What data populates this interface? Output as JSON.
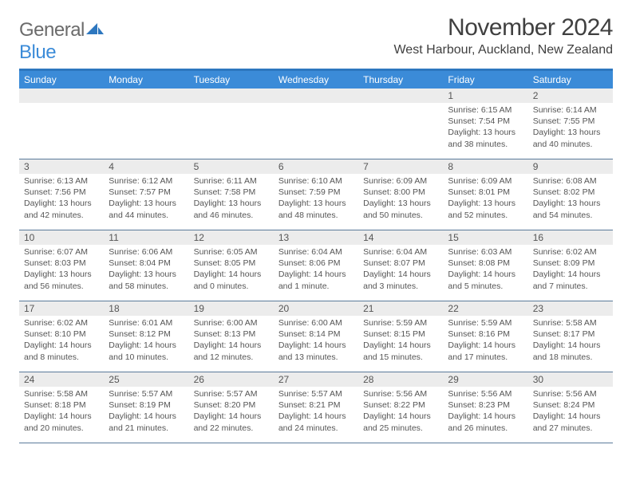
{
  "logo": {
    "text1": "General",
    "text2": "Blue"
  },
  "title": "November 2024",
  "location": "West Harbour, Auckland, New Zealand",
  "colors": {
    "header_bg": "#3b8bd8",
    "header_border_top": "#2d77bf",
    "row_border": "#5a7a9a",
    "daynum_bg": "#ececec",
    "text_dark": "#404040",
    "text_muted": "#555555",
    "logo_gray": "#6b6b6b",
    "logo_blue": "#3b8bd8"
  },
  "day_names": [
    "Sunday",
    "Monday",
    "Tuesday",
    "Wednesday",
    "Thursday",
    "Friday",
    "Saturday"
  ],
  "weeks": [
    [
      {
        "num": "",
        "sunrise": "",
        "sunset": "",
        "daylight": ""
      },
      {
        "num": "",
        "sunrise": "",
        "sunset": "",
        "daylight": ""
      },
      {
        "num": "",
        "sunrise": "",
        "sunset": "",
        "daylight": ""
      },
      {
        "num": "",
        "sunrise": "",
        "sunset": "",
        "daylight": ""
      },
      {
        "num": "",
        "sunrise": "",
        "sunset": "",
        "daylight": ""
      },
      {
        "num": "1",
        "sunrise": "Sunrise: 6:15 AM",
        "sunset": "Sunset: 7:54 PM",
        "daylight": "Daylight: 13 hours and 38 minutes."
      },
      {
        "num": "2",
        "sunrise": "Sunrise: 6:14 AM",
        "sunset": "Sunset: 7:55 PM",
        "daylight": "Daylight: 13 hours and 40 minutes."
      }
    ],
    [
      {
        "num": "3",
        "sunrise": "Sunrise: 6:13 AM",
        "sunset": "Sunset: 7:56 PM",
        "daylight": "Daylight: 13 hours and 42 minutes."
      },
      {
        "num": "4",
        "sunrise": "Sunrise: 6:12 AM",
        "sunset": "Sunset: 7:57 PM",
        "daylight": "Daylight: 13 hours and 44 minutes."
      },
      {
        "num": "5",
        "sunrise": "Sunrise: 6:11 AM",
        "sunset": "Sunset: 7:58 PM",
        "daylight": "Daylight: 13 hours and 46 minutes."
      },
      {
        "num": "6",
        "sunrise": "Sunrise: 6:10 AM",
        "sunset": "Sunset: 7:59 PM",
        "daylight": "Daylight: 13 hours and 48 minutes."
      },
      {
        "num": "7",
        "sunrise": "Sunrise: 6:09 AM",
        "sunset": "Sunset: 8:00 PM",
        "daylight": "Daylight: 13 hours and 50 minutes."
      },
      {
        "num": "8",
        "sunrise": "Sunrise: 6:09 AM",
        "sunset": "Sunset: 8:01 PM",
        "daylight": "Daylight: 13 hours and 52 minutes."
      },
      {
        "num": "9",
        "sunrise": "Sunrise: 6:08 AM",
        "sunset": "Sunset: 8:02 PM",
        "daylight": "Daylight: 13 hours and 54 minutes."
      }
    ],
    [
      {
        "num": "10",
        "sunrise": "Sunrise: 6:07 AM",
        "sunset": "Sunset: 8:03 PM",
        "daylight": "Daylight: 13 hours and 56 minutes."
      },
      {
        "num": "11",
        "sunrise": "Sunrise: 6:06 AM",
        "sunset": "Sunset: 8:04 PM",
        "daylight": "Daylight: 13 hours and 58 minutes."
      },
      {
        "num": "12",
        "sunrise": "Sunrise: 6:05 AM",
        "sunset": "Sunset: 8:05 PM",
        "daylight": "Daylight: 14 hours and 0 minutes."
      },
      {
        "num": "13",
        "sunrise": "Sunrise: 6:04 AM",
        "sunset": "Sunset: 8:06 PM",
        "daylight": "Daylight: 14 hours and 1 minute."
      },
      {
        "num": "14",
        "sunrise": "Sunrise: 6:04 AM",
        "sunset": "Sunset: 8:07 PM",
        "daylight": "Daylight: 14 hours and 3 minutes."
      },
      {
        "num": "15",
        "sunrise": "Sunrise: 6:03 AM",
        "sunset": "Sunset: 8:08 PM",
        "daylight": "Daylight: 14 hours and 5 minutes."
      },
      {
        "num": "16",
        "sunrise": "Sunrise: 6:02 AM",
        "sunset": "Sunset: 8:09 PM",
        "daylight": "Daylight: 14 hours and 7 minutes."
      }
    ],
    [
      {
        "num": "17",
        "sunrise": "Sunrise: 6:02 AM",
        "sunset": "Sunset: 8:10 PM",
        "daylight": "Daylight: 14 hours and 8 minutes."
      },
      {
        "num": "18",
        "sunrise": "Sunrise: 6:01 AM",
        "sunset": "Sunset: 8:12 PM",
        "daylight": "Daylight: 14 hours and 10 minutes."
      },
      {
        "num": "19",
        "sunrise": "Sunrise: 6:00 AM",
        "sunset": "Sunset: 8:13 PM",
        "daylight": "Daylight: 14 hours and 12 minutes."
      },
      {
        "num": "20",
        "sunrise": "Sunrise: 6:00 AM",
        "sunset": "Sunset: 8:14 PM",
        "daylight": "Daylight: 14 hours and 13 minutes."
      },
      {
        "num": "21",
        "sunrise": "Sunrise: 5:59 AM",
        "sunset": "Sunset: 8:15 PM",
        "daylight": "Daylight: 14 hours and 15 minutes."
      },
      {
        "num": "22",
        "sunrise": "Sunrise: 5:59 AM",
        "sunset": "Sunset: 8:16 PM",
        "daylight": "Daylight: 14 hours and 17 minutes."
      },
      {
        "num": "23",
        "sunrise": "Sunrise: 5:58 AM",
        "sunset": "Sunset: 8:17 PM",
        "daylight": "Daylight: 14 hours and 18 minutes."
      }
    ],
    [
      {
        "num": "24",
        "sunrise": "Sunrise: 5:58 AM",
        "sunset": "Sunset: 8:18 PM",
        "daylight": "Daylight: 14 hours and 20 minutes."
      },
      {
        "num": "25",
        "sunrise": "Sunrise: 5:57 AM",
        "sunset": "Sunset: 8:19 PM",
        "daylight": "Daylight: 14 hours and 21 minutes."
      },
      {
        "num": "26",
        "sunrise": "Sunrise: 5:57 AM",
        "sunset": "Sunset: 8:20 PM",
        "daylight": "Daylight: 14 hours and 22 minutes."
      },
      {
        "num": "27",
        "sunrise": "Sunrise: 5:57 AM",
        "sunset": "Sunset: 8:21 PM",
        "daylight": "Daylight: 14 hours and 24 minutes."
      },
      {
        "num": "28",
        "sunrise": "Sunrise: 5:56 AM",
        "sunset": "Sunset: 8:22 PM",
        "daylight": "Daylight: 14 hours and 25 minutes."
      },
      {
        "num": "29",
        "sunrise": "Sunrise: 5:56 AM",
        "sunset": "Sunset: 8:23 PM",
        "daylight": "Daylight: 14 hours and 26 minutes."
      },
      {
        "num": "30",
        "sunrise": "Sunrise: 5:56 AM",
        "sunset": "Sunset: 8:24 PM",
        "daylight": "Daylight: 14 hours and 27 minutes."
      }
    ]
  ]
}
